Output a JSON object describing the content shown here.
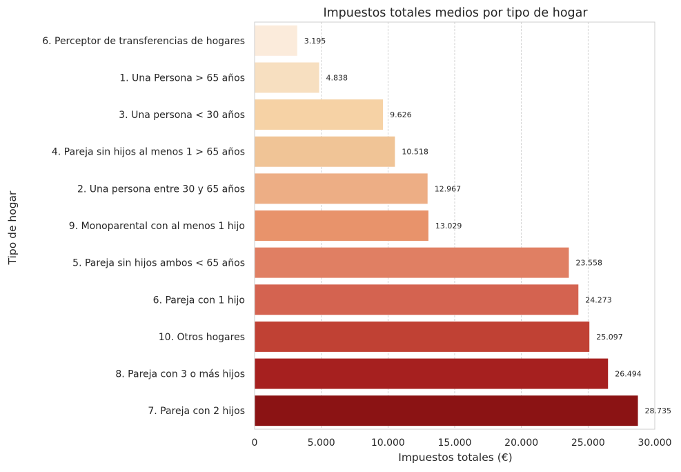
{
  "chart_data": {
    "type": "bar",
    "orientation": "horizontal",
    "title": "Impuestos totales medios por tipo de hogar",
    "xlabel": "Impuestos totales (€)",
    "ylabel": "Tipo de hogar",
    "xlim": [
      0,
      30000
    ],
    "xticks": [
      0,
      5000,
      10000,
      15000,
      20000,
      25000,
      30000
    ],
    "xtick_labels": [
      "0",
      "5.000",
      "10.000",
      "15.000",
      "20.000",
      "25.000",
      "30.000"
    ],
    "grid": "vertical dashed",
    "categories": [
      "6. Perceptor de transferencias de hogares",
      "1. Una Persona > 65 años",
      "3. Una persona < 30 años",
      "4. Pareja sin hijos al menos 1 > 65 años",
      "2. Una persona entre 30 y 65 años",
      "9. Monoparental con al menos 1 hijo",
      "5. Pareja sin hijos ambos < 65 años",
      "6. Pareja con 1 hijo",
      "10. Otros hogares",
      "8. Pareja con 3 o más hijos",
      "7. Pareja con 2 hijos"
    ],
    "values": [
      3195,
      4838,
      9626,
      10518,
      12967,
      13029,
      23558,
      24273,
      25097,
      26494,
      28735
    ],
    "value_labels": [
      "3.195",
      "4.838",
      "9.626",
      "10.518",
      "12.967",
      "13.029",
      "23.558",
      "24.273",
      "25.097",
      "26.494",
      "28.735"
    ],
    "colors": [
      "#fbebdb",
      "#f7dfc0",
      "#f6d2a5",
      "#f0c496",
      "#edae85",
      "#e8936b",
      "#e07f63",
      "#d46350",
      "#c04134",
      "#a6201f",
      "#8b1314"
    ]
  }
}
